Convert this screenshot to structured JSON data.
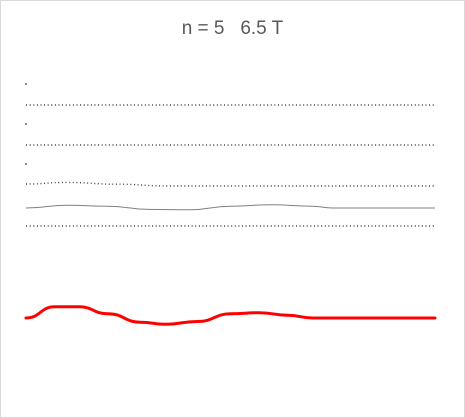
{
  "chart_data": {
    "type": "line",
    "title": "n = 5   6.5 T",
    "xlabel": "",
    "ylabel": "",
    "grid": false,
    "legend": "none",
    "colors": {
      "dotted_lines": "#404040",
      "wave_line": "#808080",
      "main_series": "#ff0000"
    },
    "series": [
      {
        "color": "#404040",
        "style": "dotted",
        "points": [
          [
            0,
            0
          ],
          [
            1,
            0
          ]
        ]
      },
      {
        "color": "#404040",
        "style": "dotted",
        "points": [
          [
            0,
            0
          ],
          [
            1,
            0
          ]
        ]
      },
      {
        "color": "#404040",
        "style": "dotted",
        "points": [
          [
            0,
            0.11
          ],
          [
            0.1,
            0.2
          ],
          [
            0.22,
            0.1
          ],
          [
            0.35,
            0
          ],
          [
            1,
            0
          ]
        ]
      },
      {
        "color": "#808080",
        "style": "solid-thin",
        "points": [
          [
            0,
            0
          ],
          [
            0.1,
            0.15
          ],
          [
            0.2,
            0.1
          ],
          [
            0.3,
            -0.08
          ],
          [
            0.4,
            -0.1
          ],
          [
            0.5,
            0.1
          ],
          [
            0.6,
            0.18
          ],
          [
            0.7,
            0.1
          ],
          [
            0.75,
            0
          ],
          [
            1,
            0
          ]
        ]
      },
      {
        "color": "#404040",
        "style": "dotted",
        "points": [
          [
            0,
            0
          ],
          [
            1,
            0
          ]
        ]
      },
      {
        "color": "#ff0000",
        "style": "solid-thick",
        "points": [
          [
            0,
            0
          ],
          [
            0.07,
            0.8
          ],
          [
            0.13,
            0.8
          ],
          [
            0.2,
            0.3
          ],
          [
            0.28,
            -0.3
          ],
          [
            0.34,
            -0.45
          ],
          [
            0.42,
            -0.25
          ],
          [
            0.5,
            0.3
          ],
          [
            0.57,
            0.38
          ],
          [
            0.64,
            0.2
          ],
          [
            0.7,
            0
          ],
          [
            1,
            0
          ]
        ]
      }
    ]
  }
}
